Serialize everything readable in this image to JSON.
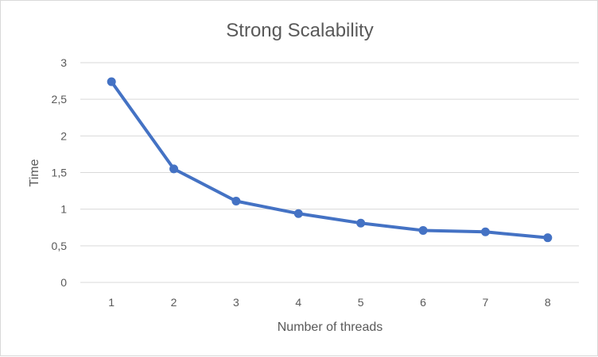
{
  "chart_data": {
    "type": "line",
    "title": "Strong Scalability",
    "xlabel": "Number of threads",
    "ylabel": "Time",
    "categories": [
      "1",
      "2",
      "3",
      "4",
      "5",
      "6",
      "7",
      "8"
    ],
    "series": [
      {
        "values": [
          2.74,
          1.55,
          1.11,
          0.94,
          0.81,
          0.71,
          0.69,
          0.61
        ]
      }
    ],
    "ylim": [
      0,
      3
    ],
    "yticks": [
      "0",
      "0,5",
      "1",
      "1,5",
      "2",
      "2,5",
      "3"
    ],
    "grid": true,
    "legend": "none",
    "colors": {
      "series": "#4472c4",
      "grid": "#d9d9d9",
      "text": "#595959"
    }
  }
}
